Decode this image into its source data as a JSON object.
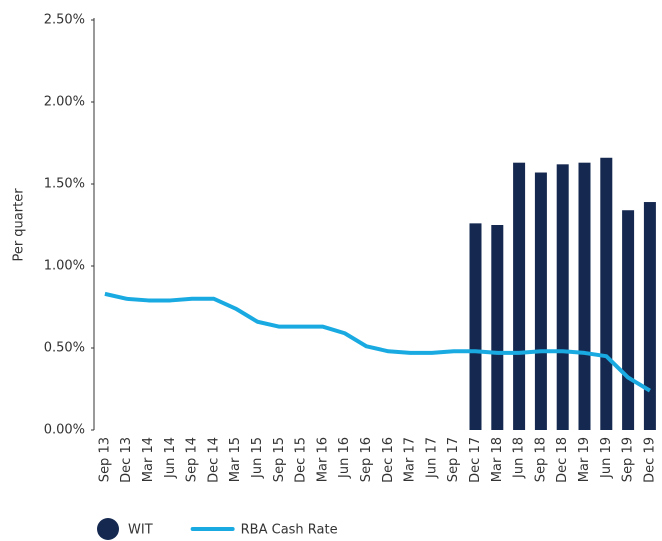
{
  "chart_data": {
    "type": "bar",
    "ylabel": "Per quarter",
    "categories": [
      "Sep 13",
      "Dec 13",
      "Mar 14",
      "Jun 14",
      "Sep 14",
      "Dec 14",
      "Mar 15",
      "Jun 15",
      "Sep 15",
      "Dec 15",
      "Mar 16",
      "Jun 16",
      "Sep 16",
      "Dec 16",
      "Mar 17",
      "Jun 17",
      "Sep 17",
      "Dec 17",
      "Mar 18",
      "Jun 18",
      "Sep 18",
      "Dec 18",
      "Mar 19",
      "Jun 19",
      "Sep 19",
      "Dec 19"
    ],
    "series": [
      {
        "name": "WIT",
        "type": "bar",
        "color": "#152850",
        "values": [
          null,
          null,
          null,
          null,
          null,
          null,
          null,
          null,
          null,
          null,
          null,
          null,
          null,
          null,
          null,
          null,
          null,
          1.26,
          1.25,
          1.63,
          1.57,
          1.62,
          1.63,
          1.66,
          1.34,
          1.39
        ]
      },
      {
        "name": "RBA Cash Rate",
        "type": "line",
        "color": "#1aaae2",
        "values": [
          0.83,
          0.8,
          0.79,
          0.79,
          0.8,
          0.8,
          0.74,
          0.66,
          0.63,
          0.63,
          0.63,
          0.59,
          0.51,
          0.48,
          0.47,
          0.47,
          0.48,
          0.48,
          0.47,
          0.47,
          0.48,
          0.48,
          0.47,
          0.45,
          0.32,
          0.24
        ]
      }
    ],
    "ylim": [
      0,
      2.5
    ],
    "yticks": [
      {
        "value": 0,
        "label": "0.00%"
      },
      {
        "value": 0.5,
        "label": "0.50%"
      },
      {
        "value": 1,
        "label": "1.00%"
      },
      {
        "value": 1.5,
        "label": "1.50%"
      },
      {
        "value": 2,
        "label": "2.00%"
      },
      {
        "value": 2.5,
        "label": "2.50%"
      }
    ],
    "legend": "bottom-left"
  }
}
